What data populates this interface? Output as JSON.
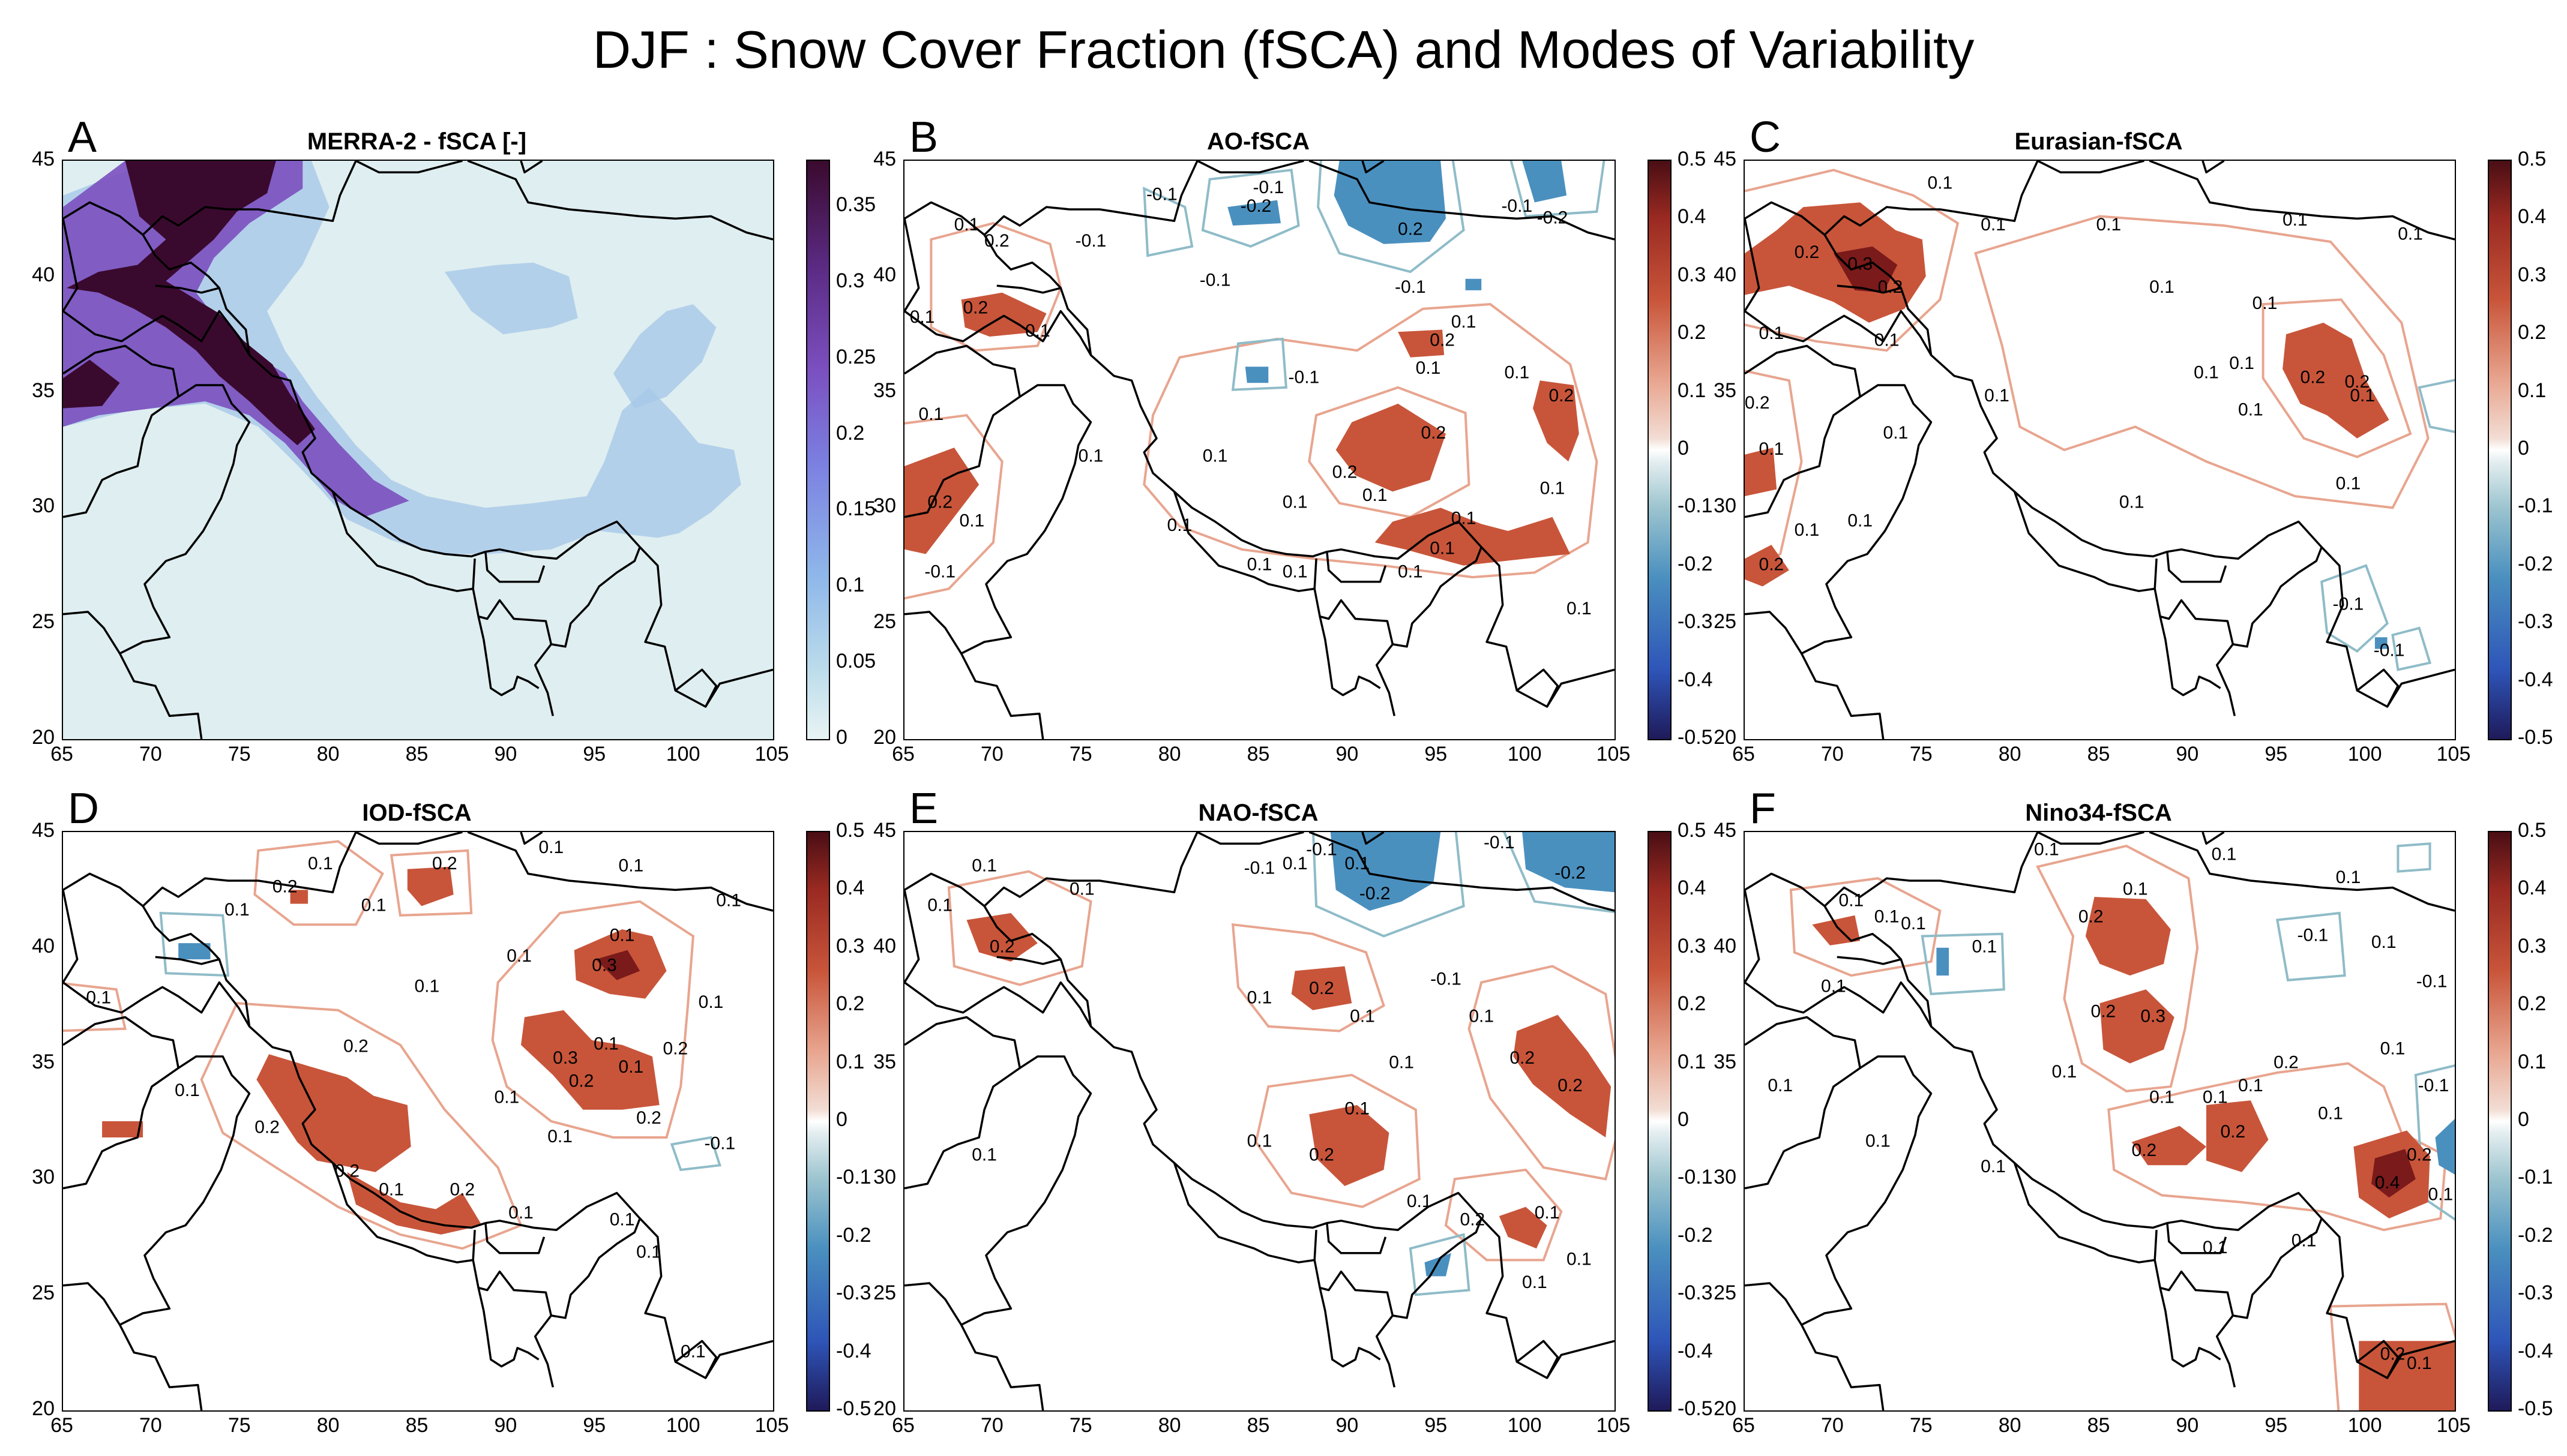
{
  "title": "DJF : Snow Cover Fraction (fSCA) and Modes of Variability",
  "colors": {
    "background": "#ffffff",
    "border": "#000000",
    "positive_contour": "#e8a58f",
    "negative_contour": "#8fbcc8",
    "positive_fill": "#c8553a",
    "strong_positive_fill": "#7a1a1a",
    "negative_fill": "#4a90bf",
    "fsca_high": "#3a0a2e",
    "fsca_mid": "#7b4fbf",
    "fsca_low": "#a8c8e8",
    "fsca_zero": "#dfeef0"
  },
  "chart_data": [
    {
      "type": "heatmap",
      "panel": "A",
      "title": "MERRA-2 - fSCA [-]",
      "x_ticks": [
        "65",
        "70",
        "75",
        "80",
        "85",
        "90",
        "95",
        "100",
        "105"
      ],
      "y_ticks": [
        "45",
        "40",
        "35",
        "30",
        "25",
        "20"
      ],
      "xlim": [
        65,
        105
      ],
      "ylim": [
        20,
        45
      ],
      "colorbar_ticks": [
        "0.35",
        "0.3",
        "0.25",
        "0.2",
        "0.15",
        "0.1",
        "0.05",
        "0"
      ],
      "colorbar_range": [
        0,
        0.38
      ],
      "colormap": "dense",
      "contour_labels": []
    },
    {
      "type": "heatmap",
      "panel": "B",
      "title": "AO-fSCA",
      "x_ticks": [
        "65",
        "70",
        "75",
        "80",
        "85",
        "90",
        "95",
        "100",
        "105"
      ],
      "y_ticks": [
        "45",
        "40",
        "35",
        "30",
        "25",
        "20"
      ],
      "xlim": [
        65,
        105
      ],
      "ylim": [
        20,
        45
      ],
      "colorbar_ticks": [
        "0.5",
        "0.4",
        "0.3",
        "0.2",
        "0.1",
        "0",
        "-0.1",
        "-0.2",
        "-0.3",
        "-0.4",
        "-0.5"
      ],
      "colorbar_range": [
        -0.5,
        0.5
      ],
      "colormap": "balance",
      "contour_labels": [
        {
          "text": "-0.1",
          "lon": 85.5,
          "lat": 43.8
        },
        {
          "text": "-0.2",
          "lon": 84.8,
          "lat": 43.0
        },
        {
          "text": "0.1",
          "lon": 68.5,
          "lat": 42.2
        },
        {
          "text": "0.2",
          "lon": 70.2,
          "lat": 41.5
        },
        {
          "text": "-0.1",
          "lon": 75.5,
          "lat": 41.5
        },
        {
          "text": "-0.1",
          "lon": 79.5,
          "lat": 43.5
        },
        {
          "text": "-0.1",
          "lon": 82.5,
          "lat": 39.8
        },
        {
          "text": "0.2",
          "lon": 69.0,
          "lat": 38.6
        },
        {
          "text": "0.1",
          "lon": 66.0,
          "lat": 38.2
        },
        {
          "text": "0.1",
          "lon": 72.5,
          "lat": 37.6
        },
        {
          "text": "-0.1",
          "lon": 87.5,
          "lat": 35.6
        },
        {
          "text": "-0.1",
          "lon": 93.5,
          "lat": 39.5
        },
        {
          "text": "0.1",
          "lon": 96.5,
          "lat": 38.0
        },
        {
          "text": "0.2",
          "lon": 95.3,
          "lat": 37.2
        },
        {
          "text": "0.1",
          "lon": 94.5,
          "lat": 36.0
        },
        {
          "text": "0.2",
          "lon": 93.5,
          "lat": 42.0
        },
        {
          "text": "-0.1",
          "lon": 99.5,
          "lat": 43.0
        },
        {
          "text": "-0.2",
          "lon": 101.5,
          "lat": 42.5
        },
        {
          "text": "0.1",
          "lon": 66.5,
          "lat": 34.0
        },
        {
          "text": "0.1",
          "lon": 75.5,
          "lat": 32.2
        },
        {
          "text": "0.1",
          "lon": 82.5,
          "lat": 32.2
        },
        {
          "text": "0.1",
          "lon": 99.5,
          "lat": 35.8
        },
        {
          "text": "0.2",
          "lon": 102.0,
          "lat": 34.8
        },
        {
          "text": "0.2",
          "lon": 94.8,
          "lat": 33.2
        },
        {
          "text": "0.2",
          "lon": 89.8,
          "lat": 31.5
        },
        {
          "text": "0.1",
          "lon": 91.5,
          "lat": 30.5
        },
        {
          "text": "0.1",
          "lon": 87.0,
          "lat": 30.2
        },
        {
          "text": "0.1",
          "lon": 101.5,
          "lat": 30.8
        },
        {
          "text": "0.1",
          "lon": 96.5,
          "lat": 29.5
        },
        {
          "text": "0.2",
          "lon": 67.0,
          "lat": 30.2
        },
        {
          "text": "0.1",
          "lon": 68.8,
          "lat": 29.4
        },
        {
          "text": "0.1",
          "lon": 80.5,
          "lat": 29.2
        },
        {
          "text": "0.1",
          "lon": 85.0,
          "lat": 27.5
        },
        {
          "text": "0.1",
          "lon": 87.0,
          "lat": 27.2
        },
        {
          "text": "0.1",
          "lon": 93.5,
          "lat": 27.2
        },
        {
          "text": "0.1",
          "lon": 95.3,
          "lat": 28.2
        },
        {
          "text": "-0.1",
          "lon": 67.0,
          "lat": 27.2
        },
        {
          "text": "0.1",
          "lon": 103.0,
          "lat": 25.6
        }
      ]
    },
    {
      "type": "heatmap",
      "panel": "C",
      "title": "Eurasian-fSCA",
      "x_ticks": [
        "65",
        "70",
        "75",
        "80",
        "85",
        "90",
        "95",
        "100",
        "105"
      ],
      "y_ticks": [
        "45",
        "40",
        "35",
        "30",
        "25",
        "20"
      ],
      "xlim": [
        65,
        105
      ],
      "ylim": [
        20,
        45
      ],
      "colorbar_ticks": [
        "0.5",
        "0.4",
        "0.3",
        "0.2",
        "0.1",
        "0",
        "-0.1",
        "-0.2",
        "-0.3",
        "-0.4",
        "-0.5"
      ],
      "colorbar_range": [
        -0.5,
        0.5
      ],
      "colormap": "balance",
      "contour_labels": [
        {
          "text": "0.1",
          "lon": 76.0,
          "lat": 44.0
        },
        {
          "text": "0.1",
          "lon": 79.0,
          "lat": 42.2
        },
        {
          "text": "0.1",
          "lon": 85.5,
          "lat": 42.2
        },
        {
          "text": "0.1",
          "lon": 96.0,
          "lat": 42.4
        },
        {
          "text": "0.1",
          "lon": 102.5,
          "lat": 41.8
        },
        {
          "text": "0.2",
          "lon": 68.5,
          "lat": 41.0
        },
        {
          "text": "0.3",
          "lon": 71.5,
          "lat": 40.5
        },
        {
          "text": "0.2",
          "lon": 73.2,
          "lat": 39.5
        },
        {
          "text": "0.1",
          "lon": 88.5,
          "lat": 39.5
        },
        {
          "text": "0.1",
          "lon": 94.3,
          "lat": 38.8
        },
        {
          "text": "0.1",
          "lon": 66.5,
          "lat": 37.5
        },
        {
          "text": "0.1",
          "lon": 73.0,
          "lat": 37.2
        },
        {
          "text": "0.1",
          "lon": 93.0,
          "lat": 36.2
        },
        {
          "text": "0.2",
          "lon": 97.0,
          "lat": 35.6
        },
        {
          "text": "0.2",
          "lon": 99.5,
          "lat": 35.4
        },
        {
          "text": "0.1",
          "lon": 91.0,
          "lat": 35.8
        },
        {
          "text": "0.1",
          "lon": 93.5,
          "lat": 34.2
        },
        {
          "text": "0.1",
          "lon": 99.8,
          "lat": 34.8
        },
        {
          "text": "0.2",
          "lon": 65.7,
          "lat": 34.5
        },
        {
          "text": "0.1",
          "lon": 66.5,
          "lat": 32.5
        },
        {
          "text": "0.1",
          "lon": 73.5,
          "lat": 33.2
        },
        {
          "text": "0.1",
          "lon": 79.2,
          "lat": 34.8
        },
        {
          "text": "0.1",
          "lon": 99.0,
          "lat": 31.0
        },
        {
          "text": "0.1",
          "lon": 86.8,
          "lat": 30.2
        },
        {
          "text": "0.1",
          "lon": 68.5,
          "lat": 29.0
        },
        {
          "text": "0.2",
          "lon": 66.5,
          "lat": 27.5
        },
        {
          "text": "0.1",
          "lon": 71.5,
          "lat": 29.4
        },
        {
          "text": "-0.1",
          "lon": 99.0,
          "lat": 25.8
        },
        {
          "text": "-0.1",
          "lon": 101.3,
          "lat": 23.8
        }
      ]
    },
    {
      "type": "heatmap",
      "panel": "D",
      "title": "IOD-fSCA",
      "x_ticks": [
        "65",
        "70",
        "75",
        "80",
        "85",
        "90",
        "95",
        "100",
        "105"
      ],
      "y_ticks": [
        "45",
        "40",
        "35",
        "30",
        "25",
        "20"
      ],
      "xlim": [
        65,
        105
      ],
      "ylim": [
        20,
        45
      ],
      "colorbar_ticks": [
        "0.5",
        "0.4",
        "0.3",
        "0.2",
        "0.1",
        "0",
        "-0.1",
        "-0.2",
        "-0.3",
        "-0.4",
        "-0.5"
      ],
      "colorbar_range": [
        -0.5,
        0.5
      ],
      "colormap": "balance",
      "contour_labels": [
        {
          "text": "0.1",
          "lon": 79.5,
          "lat": 43.6
        },
        {
          "text": "0.2",
          "lon": 77.5,
          "lat": 42.6
        },
        {
          "text": "0.1",
          "lon": 74.8,
          "lat": 41.6
        },
        {
          "text": "0.2",
          "lon": 86.5,
          "lat": 43.6
        },
        {
          "text": "0.1",
          "lon": 92.5,
          "lat": 44.3
        },
        {
          "text": "0.1",
          "lon": 97.0,
          "lat": 43.5
        },
        {
          "text": "0.1",
          "lon": 102.5,
          "lat": 42.0
        },
        {
          "text": "0.1",
          "lon": 82.5,
          "lat": 41.8
        },
        {
          "text": "0.1",
          "lon": 85.5,
          "lat": 38.3
        },
        {
          "text": "0.1",
          "lon": 90.7,
          "lat": 39.6
        },
        {
          "text": "0.1",
          "lon": 96.5,
          "lat": 40.5
        },
        {
          "text": "0.3",
          "lon": 95.5,
          "lat": 39.2
        },
        {
          "text": "0.1",
          "lon": 101.5,
          "lat": 37.6
        },
        {
          "text": "0.1",
          "lon": 67.0,
          "lat": 37.8
        },
        {
          "text": "0.2",
          "lon": 81.5,
          "lat": 35.7
        },
        {
          "text": "0.3",
          "lon": 93.3,
          "lat": 35.2
        },
        {
          "text": "0.1",
          "lon": 95.6,
          "lat": 35.8
        },
        {
          "text": "0.2",
          "lon": 94.2,
          "lat": 34.2
        },
        {
          "text": "0.1",
          "lon": 97.0,
          "lat": 34.8
        },
        {
          "text": "0.2",
          "lon": 99.5,
          "lat": 35.6
        },
        {
          "text": "0.2",
          "lon": 98.0,
          "lat": 32.6
        },
        {
          "text": "0.1",
          "lon": 72.0,
          "lat": 33.8
        },
        {
          "text": "0.2",
          "lon": 76.5,
          "lat": 32.2
        },
        {
          "text": "0.1",
          "lon": 90.0,
          "lat": 33.5
        },
        {
          "text": "0.1",
          "lon": 93.0,
          "lat": 31.8
        },
        {
          "text": "-0.1",
          "lon": 102.0,
          "lat": 31.5
        },
        {
          "text": "0.2",
          "lon": 81.0,
          "lat": 30.3
        },
        {
          "text": "0.1",
          "lon": 83.5,
          "lat": 29.5
        },
        {
          "text": "0.2",
          "lon": 87.5,
          "lat": 29.5
        },
        {
          "text": "0.1",
          "lon": 90.8,
          "lat": 28.5
        },
        {
          "text": "0.1",
          "lon": 96.5,
          "lat": 28.2
        },
        {
          "text": "0.1",
          "lon": 98.0,
          "lat": 26.8
        },
        {
          "text": "0.1",
          "lon": 100.5,
          "lat": 22.5
        }
      ]
    },
    {
      "type": "heatmap",
      "panel": "E",
      "title": "NAO-fSCA",
      "x_ticks": [
        "65",
        "70",
        "75",
        "80",
        "85",
        "90",
        "95",
        "100",
        "105"
      ],
      "y_ticks": [
        "45",
        "40",
        "35",
        "30",
        "25",
        "20"
      ],
      "xlim": [
        65,
        105
      ],
      "ylim": [
        20,
        45
      ],
      "colorbar_ticks": [
        "0.5",
        "0.4",
        "0.3",
        "0.2",
        "0.1",
        "0",
        "-0.1",
        "-0.2",
        "-0.3",
        "-0.4",
        "-0.5"
      ],
      "colorbar_range": [
        -0.5,
        0.5
      ],
      "colormap": "balance",
      "contour_labels": [
        {
          "text": "0.1",
          "lon": 69.5,
          "lat": 43.5
        },
        {
          "text": "-0.1",
          "lon": 85.0,
          "lat": 43.4
        },
        {
          "text": "0.1",
          "lon": 87.0,
          "lat": 43.6
        },
        {
          "text": "-0.1",
          "lon": 88.5,
          "lat": 44.2
        },
        {
          "text": "0.1",
          "lon": 90.5,
          "lat": 43.6
        },
        {
          "text": "-0.2",
          "lon": 91.5,
          "lat": 42.3
        },
        {
          "text": "-0.1",
          "lon": 98.5,
          "lat": 44.5
        },
        {
          "text": "-0.2",
          "lon": 102.5,
          "lat": 43.2
        },
        {
          "text": "0.1",
          "lon": 75.0,
          "lat": 42.5
        },
        {
          "text": "0.2",
          "lon": 70.5,
          "lat": 40.0
        },
        {
          "text": "0.1",
          "lon": 67.0,
          "lat": 41.8
        },
        {
          "text": "0.2",
          "lon": 88.5,
          "lat": 38.2
        },
        {
          "text": "0.1",
          "lon": 85.0,
          "lat": 37.8
        },
        {
          "text": "0.1",
          "lon": 90.8,
          "lat": 37.0
        },
        {
          "text": "-0.1",
          "lon": 95.5,
          "lat": 38.6
        },
        {
          "text": "0.1",
          "lon": 97.5,
          "lat": 37.0
        },
        {
          "text": "0.1",
          "lon": 93.0,
          "lat": 35.0
        },
        {
          "text": "0.2",
          "lon": 99.8,
          "lat": 35.2
        },
        {
          "text": "0.2",
          "lon": 102.5,
          "lat": 34.0
        },
        {
          "text": "0.1",
          "lon": 90.5,
          "lat": 33.0
        },
        {
          "text": "0.1",
          "lon": 85.0,
          "lat": 31.6
        },
        {
          "text": "0.2",
          "lon": 88.5,
          "lat": 31.0
        },
        {
          "text": "0.1",
          "lon": 69.5,
          "lat": 31.0
        },
        {
          "text": "0.1",
          "lon": 94.0,
          "lat": 29.0
        },
        {
          "text": "0.2",
          "lon": 97.0,
          "lat": 28.2
        },
        {
          "text": "0.1",
          "lon": 101.2,
          "lat": 28.5
        },
        {
          "text": "0.1",
          "lon": 100.5,
          "lat": 25.5
        },
        {
          "text": "0.1",
          "lon": 103.0,
          "lat": 26.5
        }
      ]
    },
    {
      "type": "heatmap",
      "panel": "F",
      "title": "Nino34-fSCA",
      "x_ticks": [
        "65",
        "70",
        "75",
        "80",
        "85",
        "90",
        "95",
        "100",
        "105"
      ],
      "y_ticks": [
        "45",
        "40",
        "35",
        "30",
        "25",
        "20"
      ],
      "xlim": [
        65,
        105
      ],
      "ylim": [
        20,
        45
      ],
      "colorbar_ticks": [
        "0.5",
        "0.4",
        "0.3",
        "0.2",
        "0.1",
        "0",
        "-0.1",
        "-0.2",
        "-0.3",
        "-0.4",
        "-0.5"
      ],
      "colorbar_range": [
        -0.5,
        0.5
      ],
      "colormap": "balance",
      "contour_labels": [
        {
          "text": "0.1",
          "lon": 82.0,
          "lat": 44.2
        },
        {
          "text": "0.1",
          "lon": 87.0,
          "lat": 42.5
        },
        {
          "text": "0.1",
          "lon": 92.0,
          "lat": 44.0
        },
        {
          "text": "0.1",
          "lon": 99.0,
          "lat": 43.0
        },
        {
          "text": "0.1",
          "lon": 71.0,
          "lat": 42.0
        },
        {
          "text": "0.1",
          "lon": 73.0,
          "lat": 41.3
        },
        {
          "text": "0.1",
          "lon": 74.5,
          "lat": 41.0
        },
        {
          "text": "0.1",
          "lon": 78.5,
          "lat": 40.0
        },
        {
          "text": "0.2",
          "lon": 84.5,
          "lat": 41.3
        },
        {
          "text": "0.1",
          "lon": 70.0,
          "lat": 38.3
        },
        {
          "text": "-0.1",
          "lon": 97.0,
          "lat": 40.5
        },
        {
          "text": "0.1",
          "lon": 101.0,
          "lat": 40.2
        },
        {
          "text": "-0.1",
          "lon": 103.7,
          "lat": 38.5
        },
        {
          "text": "0.2",
          "lon": 85.2,
          "lat": 37.2
        },
        {
          "text": "0.3",
          "lon": 88.0,
          "lat": 37.0
        },
        {
          "text": "0.1",
          "lon": 83.0,
          "lat": 34.6
        },
        {
          "text": "0.1",
          "lon": 88.5,
          "lat": 33.5
        },
        {
          "text": "0.1",
          "lon": 91.5,
          "lat": 33.5
        },
        {
          "text": "0.1",
          "lon": 93.5,
          "lat": 34.0
        },
        {
          "text": "0.2",
          "lon": 95.5,
          "lat": 35.0
        },
        {
          "text": "0.1",
          "lon": 98.0,
          "lat": 32.8
        },
        {
          "text": "0.1",
          "lon": 101.5,
          "lat": 35.6
        },
        {
          "text": "-0.1",
          "lon": 103.8,
          "lat": 34.0
        },
        {
          "text": "0.1",
          "lon": 67.0,
          "lat": 34.0
        },
        {
          "text": "0.1",
          "lon": 72.5,
          "lat": 31.6
        },
        {
          "text": "0.2",
          "lon": 87.5,
          "lat": 31.2
        },
        {
          "text": "0.2",
          "lon": 92.5,
          "lat": 32.0
        },
        {
          "text": "0.1",
          "lon": 79.0,
          "lat": 30.5
        },
        {
          "text": "0.4",
          "lon": 101.2,
          "lat": 29.8
        },
        {
          "text": "0.2",
          "lon": 103.0,
          "lat": 31.0
        },
        {
          "text": "0.1",
          "lon": 104.2,
          "lat": 29.3
        },
        {
          "text": "0.1",
          "lon": 91.5,
          "lat": 27.0
        },
        {
          "text": "0.1",
          "lon": 96.5,
          "lat": 27.3
        },
        {
          "text": "0.2",
          "lon": 101.5,
          "lat": 22.4
        },
        {
          "text": "0.1",
          "lon": 103.0,
          "lat": 22.0
        }
      ]
    }
  ]
}
